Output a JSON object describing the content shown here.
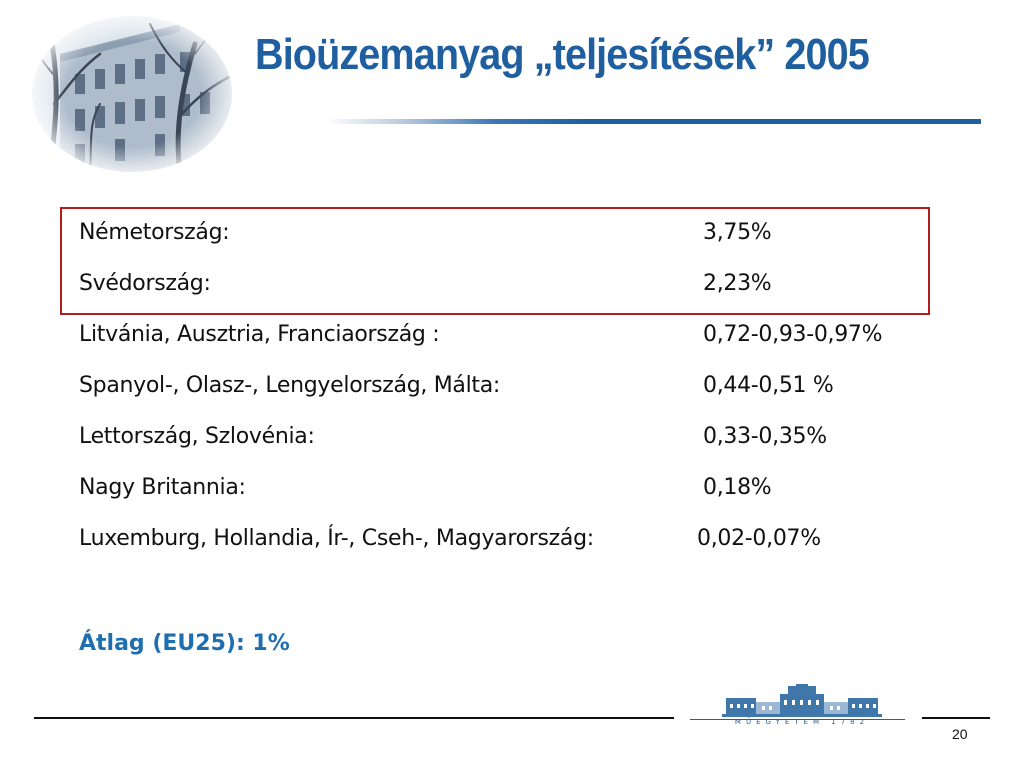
{
  "slide": {
    "title": "Bioüzemanyag „teljesítések” 2005",
    "rows": [
      {
        "country": "Németország:",
        "value": "3,75%",
        "highlighted": true
      },
      {
        "country": "Svédország:",
        "value": "2,23%",
        "highlighted": true
      },
      {
        "country": "Litvánia, Ausztria, Franciaország :",
        "value": "0,72-0,93-0,97%",
        "highlighted": false
      },
      {
        "country": "Spanyol-, Olasz-, Lengyelország, Málta:",
        "value": "0,44-0,51 %",
        "highlighted": false
      },
      {
        "country": "Lettország, Szlovénia:",
        "value": "0,33-0,35%",
        "highlighted": false
      },
      {
        "country": "Nagy Britannia:",
        "value": "0,18%",
        "highlighted": false
      },
      {
        "country": "Luxemburg, Hollandia, Ír-, Cseh-, Magyarország:",
        "value": "0,02-0,07%",
        "highlighted": false
      }
    ],
    "average": "Átlag (EU25): 1%"
  },
  "footer": {
    "logo_text": "MŰEGYETEM 1782",
    "page_number": "20"
  },
  "colors": {
    "title": "#1f5fa0",
    "highlight_border": "#b01e1e",
    "average": "#1f6fb0"
  }
}
